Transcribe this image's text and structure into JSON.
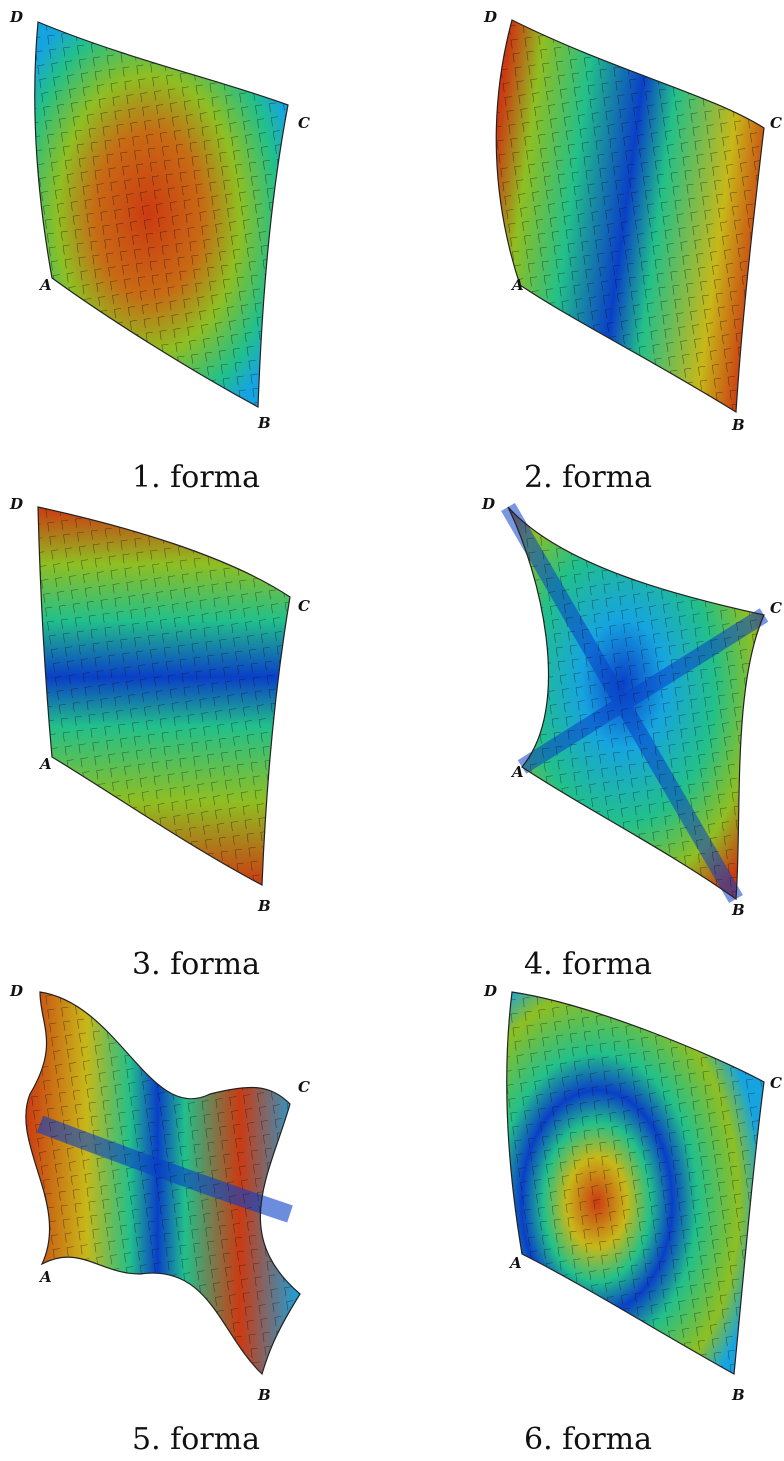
{
  "figures": [
    {
      "caption": "1. forma",
      "corners": {
        "a": "A",
        "b": "B",
        "c": "C",
        "d": "D"
      },
      "mode": 1
    },
    {
      "caption": "2. forma",
      "corners": {
        "a": "A",
        "b": "B",
        "c": "C",
        "d": "D"
      },
      "mode": 2
    },
    {
      "caption": "3. forma",
      "corners": {
        "a": "A",
        "b": "B",
        "c": "C",
        "d": "D"
      },
      "mode": 3
    },
    {
      "caption": "4. forma",
      "corners": {
        "a": "A",
        "b": "B",
        "c": "C",
        "d": "D"
      },
      "mode": 4
    },
    {
      "caption": "5. forma",
      "corners": {
        "a": "A",
        "b": "B",
        "c": "C",
        "d": "D"
      },
      "mode": 5
    },
    {
      "caption": "6. forma",
      "corners": {
        "a": "A",
        "b": "B",
        "c": "C",
        "d": "D"
      },
      "mode": 6
    }
  ],
  "colormap": [
    "#0a3fc8",
    "#16a4e0",
    "#22c08a",
    "#6fbf2a",
    "#c8b818",
    "#cc3a12"
  ]
}
